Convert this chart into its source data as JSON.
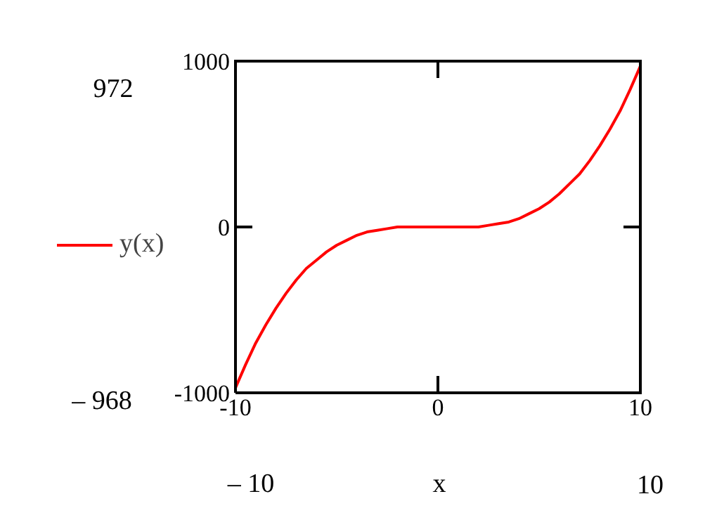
{
  "chart_data": {
    "type": "line",
    "xlabel": "x",
    "x": [
      -10,
      -9.5,
      -9,
      -8.5,
      -8,
      -7.5,
      -7,
      -6.5,
      -6,
      -5.5,
      -5,
      -4.5,
      -4,
      -3.5,
      -3,
      -2.5,
      -2,
      -1.5,
      -1,
      -0.5,
      0,
      0.5,
      1,
      1.5,
      2,
      2.5,
      3,
      3.5,
      4,
      4.5,
      5,
      5.5,
      6,
      6.5,
      7,
      7.5,
      8,
      8.5,
      9,
      9.5,
      10
    ],
    "series": [
      {
        "name": "y(x)",
        "color": "#ff0000",
        "values": [
          -970,
          -830,
          -700,
          -590,
          -490,
          -400,
          -320,
          -250,
          -200,
          -150,
          -110,
          -80,
          -50,
          -30,
          -20,
          -10,
          0,
          0,
          0,
          0,
          0,
          0,
          0,
          0,
          0,
          10,
          20,
          30,
          50,
          80,
          110,
          150,
          200,
          260,
          320,
          400,
          490,
          590,
          700,
          830,
          970
        ]
      }
    ],
    "xlim": [
      -10,
      10
    ],
    "ylim": [
      -1000,
      1000
    ],
    "xticks": [
      -10,
      0,
      10
    ],
    "yticks": [
      -1000,
      0,
      1000
    ],
    "annotations": [
      "972",
      "– 968",
      "– 10",
      "10"
    ],
    "legend": "left",
    "grid": false,
    "marker": "none",
    "line_style": "solid"
  }
}
